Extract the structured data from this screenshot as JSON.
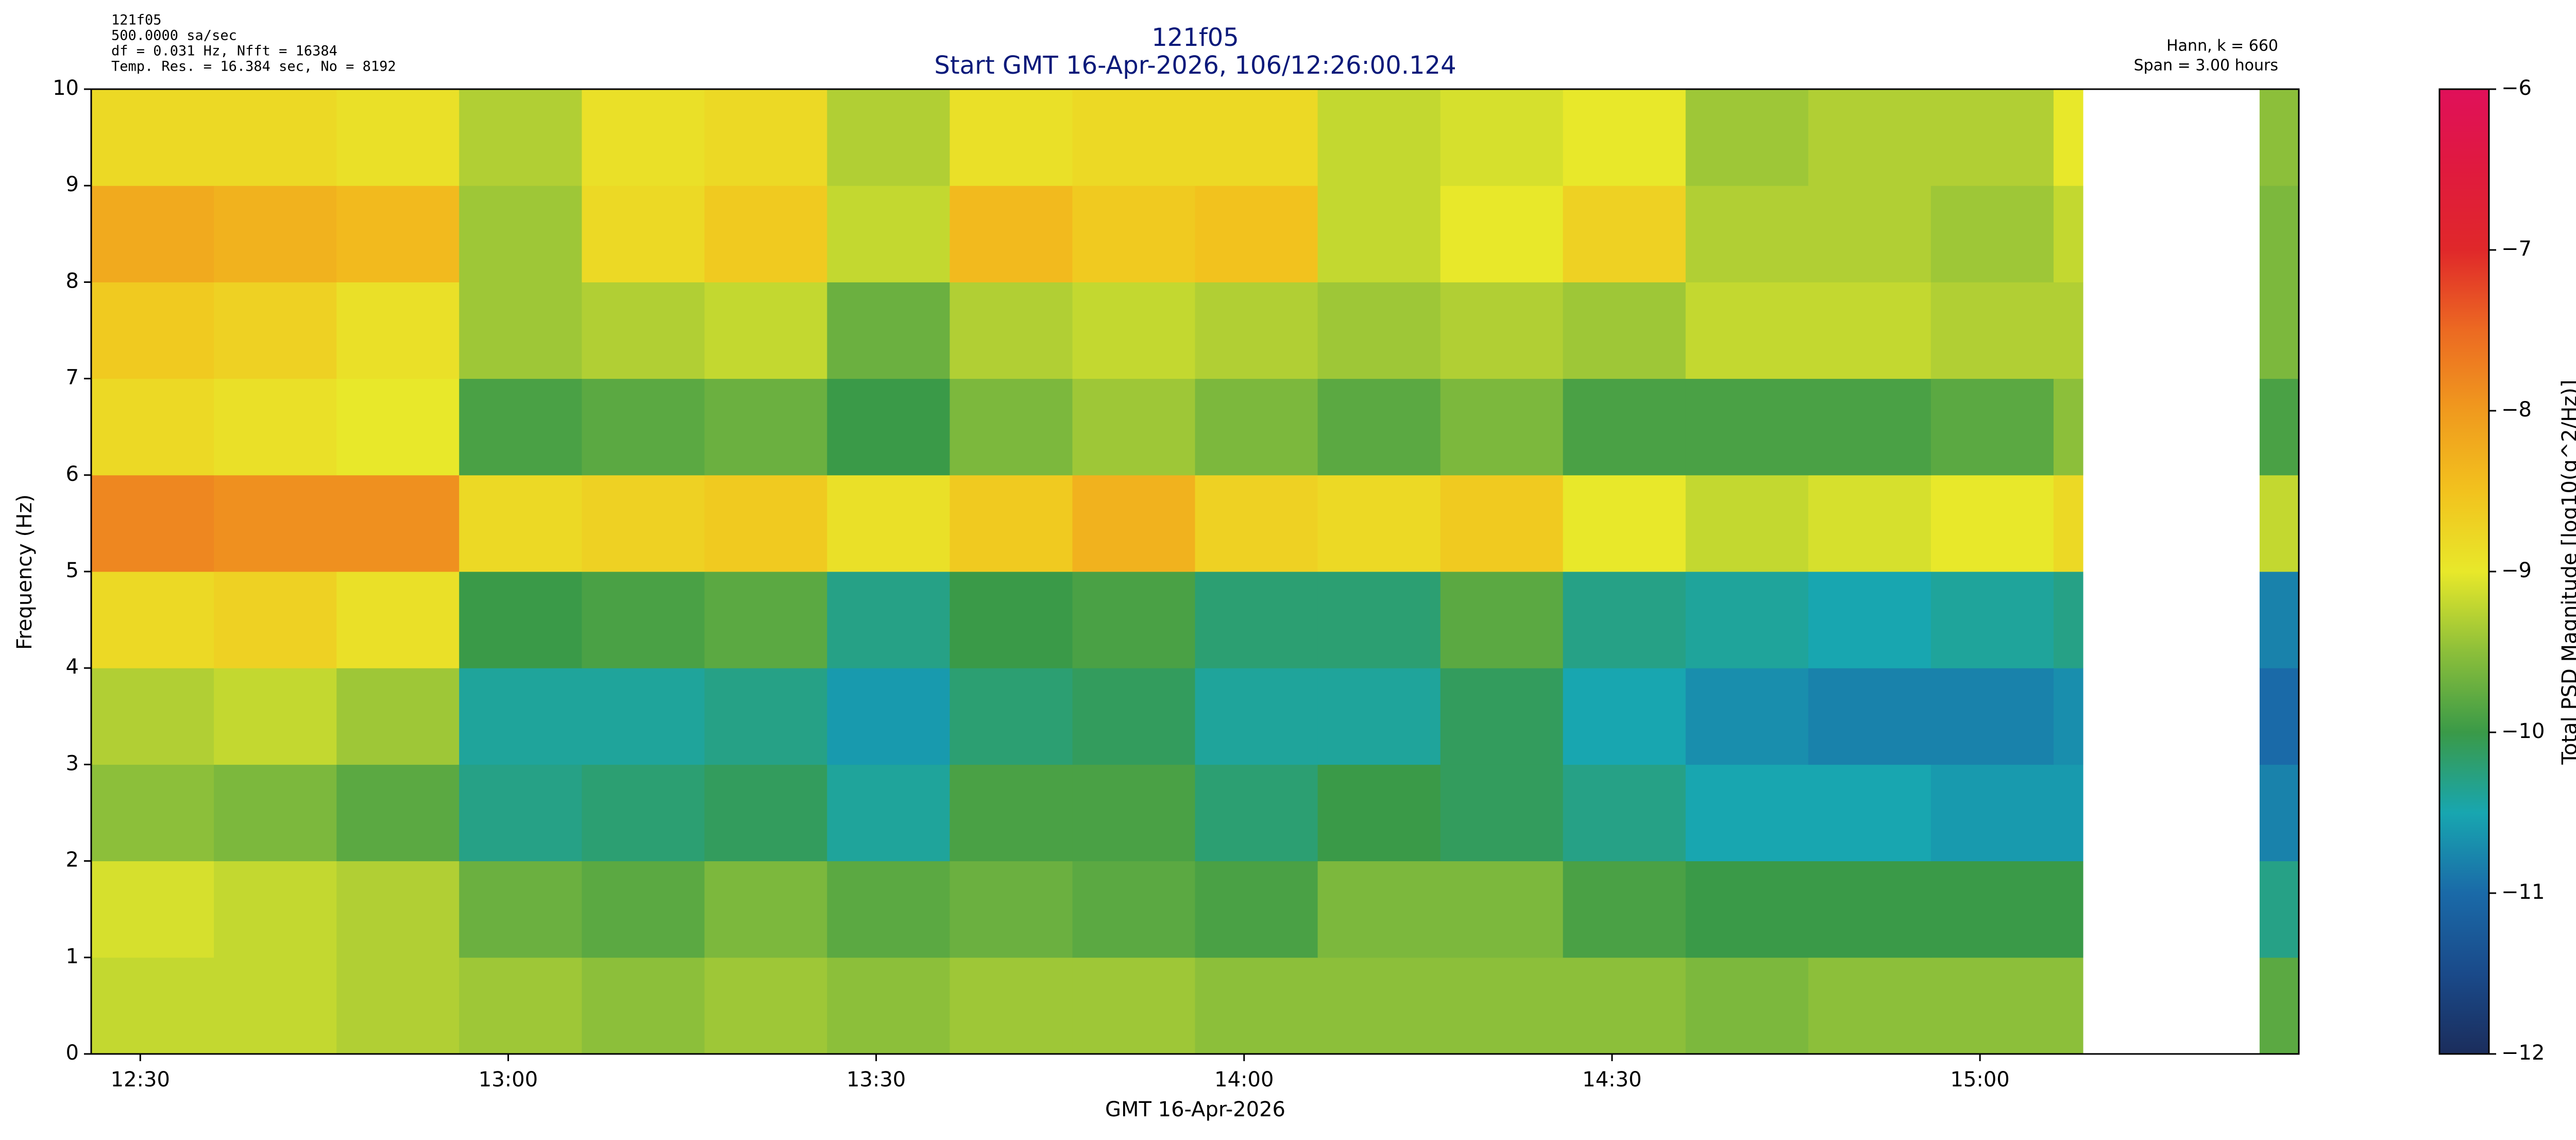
{
  "chart_data": {
    "type": "spectrogram",
    "header_left": [
      "121f05",
      "500.0000 sa/sec",
      "df = 0.031 Hz,  Nfft = 16384",
      "Temp. Res. = 16.384 sec, No = 8192"
    ],
    "title": "121f05",
    "subtitle": "Start GMT 16-Apr-2026, 106/12:26:00.124",
    "header_right": [
      "Hann, k = 660",
      "Span = 3.00 hours"
    ],
    "x_label": "GMT 16-Apr-2026",
    "y_label": "Frequency (Hz)",
    "xlim": [
      12.4333,
      15.4333
    ],
    "xticks": [
      {
        "value": 12.5,
        "label": "12:30"
      },
      {
        "value": 13,
        "label": "13:00"
      },
      {
        "value": 13.5,
        "label": "13:30"
      },
      {
        "value": 14,
        "label": "14:00"
      },
      {
        "value": 14.5,
        "label": "14:30"
      },
      {
        "value": 15,
        "label": "15:00"
      }
    ],
    "ylim": [
      0,
      10
    ],
    "yticks": [
      0,
      1,
      2,
      3,
      4,
      5,
      6,
      7,
      8,
      9,
      10
    ],
    "x_bins": [
      12.4333,
      12.6,
      12.7667,
      12.9333,
      13.1,
      13.2667,
      13.4333,
      13.6,
      13.7667,
      13.9333,
      14.1,
      14.2667,
      14.4333,
      14.6,
      14.7667,
      14.9333,
      15.1,
      15.14,
      15.38,
      15.4333
    ],
    "y_bins": [
      0,
      1,
      2,
      3,
      4,
      5,
      6,
      7,
      8,
      9,
      10
    ],
    "values": [
      [
        -9.2,
        -9.2,
        -9.3,
        -9.4,
        -9.5,
        -9.4,
        -9.5,
        -9.4,
        -9.4,
        -9.5,
        -9.5,
        -9.5,
        -9.5,
        -9.6,
        -9.5,
        -9.5,
        -9.5,
        null,
        -9.8
      ],
      [
        -9.1,
        -9.2,
        -9.3,
        -9.7,
        -9.8,
        -9.6,
        -9.8,
        -9.7,
        -9.8,
        -9.9,
        -9.6,
        -9.6,
        -9.9,
        -10.0,
        -10.0,
        -10.0,
        -10.0,
        null,
        -10.3
      ],
      [
        -9.5,
        -9.6,
        -9.8,
        -10.3,
        -10.2,
        -10.1,
        -10.4,
        -9.9,
        -9.9,
        -10.2,
        -10.0,
        -10.1,
        -10.3,
        -10.5,
        -10.5,
        -10.6,
        -10.6,
        null,
        -10.8
      ],
      [
        -9.3,
        -9.2,
        -9.4,
        -10.4,
        -10.4,
        -10.3,
        -10.6,
        -10.2,
        -10.1,
        -10.4,
        -10.4,
        -10.1,
        -10.5,
        -10.7,
        -10.8,
        -10.8,
        -10.7,
        null,
        -11.0
      ],
      [
        -8.8,
        -8.7,
        -8.9,
        -10.0,
        -9.9,
        -9.8,
        -10.3,
        -10.0,
        -9.9,
        -10.2,
        -10.2,
        -9.8,
        -10.3,
        -10.4,
        -10.5,
        -10.4,
        -10.3,
        null,
        -10.8
      ],
      [
        -7.8,
        -7.9,
        -7.9,
        -8.8,
        -8.7,
        -8.6,
        -8.9,
        -8.6,
        -8.3,
        -8.7,
        -8.8,
        -8.6,
        -9.0,
        -9.2,
        -9.1,
        -9.0,
        -8.8,
        null,
        -9.2
      ],
      [
        -8.8,
        -8.9,
        -9.0,
        -9.9,
        -9.8,
        -9.7,
        -10.0,
        -9.6,
        -9.4,
        -9.6,
        -9.8,
        -9.6,
        -9.9,
        -9.9,
        -9.9,
        -9.8,
        -9.5,
        null,
        -9.9
      ],
      [
        -8.6,
        -8.7,
        -8.9,
        -9.4,
        -9.3,
        -9.2,
        -9.7,
        -9.3,
        -9.2,
        -9.3,
        -9.4,
        -9.3,
        -9.4,
        -9.2,
        -9.2,
        -9.3,
        -9.3,
        null,
        -9.6
      ],
      [
        -8.2,
        -8.3,
        -8.4,
        -9.4,
        -8.8,
        -8.6,
        -9.2,
        -8.4,
        -8.6,
        -8.5,
        -9.2,
        -9.0,
        -8.7,
        -9.3,
        -9.3,
        -9.4,
        -9.2,
        null,
        -9.6
      ],
      [
        -8.8,
        -8.8,
        -8.9,
        -9.3,
        -8.9,
        -8.8,
        -9.3,
        -8.9,
        -8.8,
        -8.8,
        -9.2,
        -9.1,
        -9.0,
        -9.4,
        -9.3,
        -9.3,
        -9.0,
        null,
        -9.5
      ]
    ],
    "colorbar": {
      "label": "Total PSD Magnitude [log10(g^2/Hz)]",
      "clim": [
        -12,
        -6
      ],
      "ticks": [
        {
          "value": -12,
          "label": "−12"
        },
        {
          "value": -11,
          "label": "−11"
        },
        {
          "value": -10,
          "label": "−10"
        },
        {
          "value": -9,
          "label": "−9"
        },
        {
          "value": -8,
          "label": "−8"
        },
        {
          "value": -7,
          "label": "−7"
        },
        {
          "value": -6,
          "label": "−6"
        }
      ],
      "colormap": [
        "#1b2d5c",
        "#1a4a8a",
        "#1a6aa8",
        "#18a6b0",
        "#3a9a48",
        "#8cbf3a",
        "#e8e82a",
        "#f2c21e",
        "#f09a1e",
        "#ec6a22",
        "#e0282a",
        "#e01a3e",
        "#e0105a"
      ]
    },
    "title_color": "#0a1a7a"
  }
}
